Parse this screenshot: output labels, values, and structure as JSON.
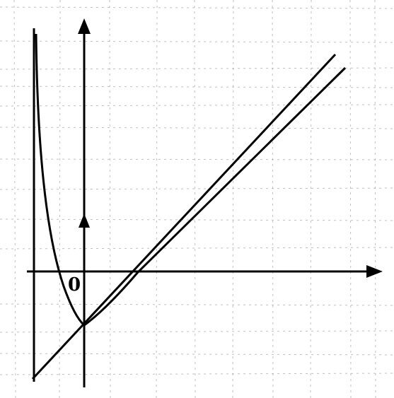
{
  "labels": {
    "origin": "0"
  },
  "colors": {
    "ink": "#000000",
    "background": "#ffffff",
    "noise": "#777777"
  }
}
